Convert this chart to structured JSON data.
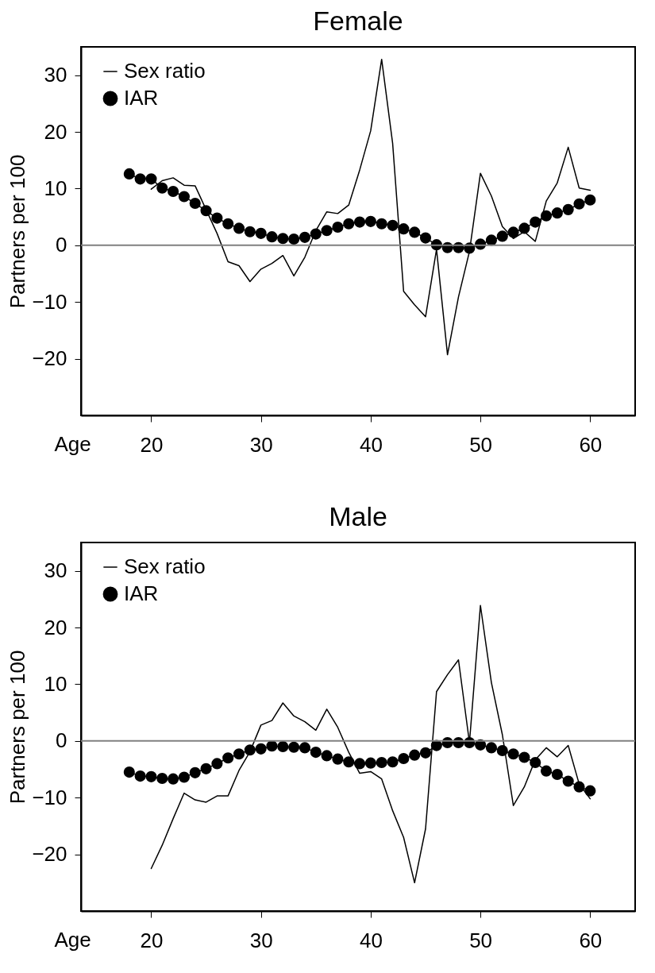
{
  "chart_data": [
    {
      "type": "line",
      "title": "Female",
      "xlabel": "Age",
      "ylabel": "Partners per 100",
      "xlim": [
        13.6,
        64.1
      ],
      "xticks": [
        20,
        30,
        40,
        50,
        60
      ],
      "ylim": [
        -30,
        35
      ],
      "yticks": [
        -20,
        -10,
        0,
        10,
        20,
        30
      ],
      "grid": false,
      "legend": "top left",
      "ref_lines": [
        {
          "axis": "y",
          "value": 0,
          "color": "#808080"
        }
      ],
      "series": [
        {
          "name": "Sex ratio",
          "color": "#000000",
          "marker": "none",
          "x": [
            20,
            21,
            22,
            23,
            24,
            25,
            26,
            27,
            28,
            29,
            30,
            31,
            32,
            33,
            34,
            35,
            36,
            37,
            38,
            39,
            40,
            41,
            42,
            43,
            44,
            45,
            46,
            47,
            48,
            49,
            50,
            51,
            52,
            53,
            54,
            55,
            56,
            57,
            58,
            59,
            60
          ],
          "values": [
            9.9,
            11.4,
            11.9,
            10.6,
            10.5,
            6.3,
            2.1,
            -2.9,
            -3.6,
            -6.4,
            -4.2,
            -3.2,
            -1.8,
            -5.4,
            -2.1,
            2.6,
            5.9,
            5.6,
            7.1,
            13.3,
            20.2,
            32.8,
            18.0,
            -8.1,
            -10.5,
            -12.6,
            -0.7,
            -19.3,
            -9.1,
            -1.1,
            12.7,
            8.7,
            3.3,
            1.2,
            2.4,
            0.7,
            7.8,
            11.0,
            17.3,
            10.1,
            9.7
          ]
        },
        {
          "name": "IAR",
          "color": "#000000",
          "marker": "circle",
          "x": [
            18,
            19,
            20,
            21,
            22,
            23,
            24,
            25,
            26,
            27,
            28,
            29,
            30,
            31,
            32,
            33,
            34,
            35,
            36,
            37,
            38,
            39,
            40,
            41,
            42,
            43,
            44,
            45,
            46,
            47,
            48,
            49,
            50,
            51,
            52,
            53,
            54,
            55,
            56,
            57,
            58,
            59,
            60
          ],
          "values": [
            12.6,
            11.7,
            11.7,
            10.1,
            9.5,
            8.6,
            7.4,
            6.1,
            4.8,
            3.8,
            3.0,
            2.4,
            2.1,
            1.5,
            1.2,
            1.1,
            1.4,
            2.0,
            2.6,
            3.2,
            3.8,
            4.1,
            4.2,
            3.8,
            3.5,
            2.9,
            2.3,
            1.3,
            0.1,
            -0.4,
            -0.4,
            -0.5,
            0.2,
            0.9,
            1.6,
            2.3,
            3.0,
            4.1,
            5.2,
            5.7,
            6.3,
            7.3,
            8.0
          ]
        }
      ]
    },
    {
      "type": "line",
      "title": "Male",
      "xlabel": "Age",
      "ylabel": "Partners per 100",
      "xlim": [
        13.6,
        64.1
      ],
      "xticks": [
        20,
        30,
        40,
        50,
        60
      ],
      "ylim": [
        -30,
        35
      ],
      "yticks": [
        -20,
        -10,
        0,
        10,
        20,
        30
      ],
      "grid": false,
      "legend": "top left",
      "ref_lines": [
        {
          "axis": "y",
          "value": 0,
          "color": "#808080"
        }
      ],
      "series": [
        {
          "name": "Sex ratio",
          "color": "#000000",
          "marker": "none",
          "x": [
            20,
            21,
            22,
            23,
            24,
            25,
            26,
            27,
            28,
            29,
            30,
            31,
            32,
            33,
            34,
            35,
            36,
            37,
            38,
            39,
            40,
            41,
            42,
            43,
            44,
            45,
            46,
            47,
            48,
            49,
            50,
            51,
            52,
            53,
            54,
            55,
            56,
            57,
            58,
            59,
            60
          ],
          "values": [
            -22.5,
            -18.4,
            -13.7,
            -9.2,
            -10.4,
            -10.8,
            -9.7,
            -9.7,
            -5.2,
            -1.9,
            2.8,
            3.6,
            6.7,
            4.4,
            3.4,
            1.9,
            5.6,
            2.4,
            -2.0,
            -5.7,
            -5.4,
            -6.7,
            -12.3,
            -17.0,
            -25.0,
            -15.5,
            8.7,
            11.7,
            14.3,
            -0.3,
            23.9,
            10.3,
            1.1,
            -11.4,
            -8.1,
            -3.3,
            -1.2,
            -2.8,
            -0.8,
            -7.6,
            -10.2
          ]
        },
        {
          "name": "IAR",
          "color": "#000000",
          "marker": "circle",
          "x": [
            18,
            19,
            20,
            21,
            22,
            23,
            24,
            25,
            26,
            27,
            28,
            29,
            30,
            31,
            32,
            33,
            34,
            35,
            36,
            37,
            38,
            39,
            40,
            41,
            42,
            43,
            44,
            45,
            46,
            47,
            48,
            49,
            50,
            51,
            52,
            53,
            54,
            55,
            56,
            57,
            58,
            59,
            60
          ],
          "values": [
            -5.5,
            -6.2,
            -6.3,
            -6.6,
            -6.7,
            -6.4,
            -5.6,
            -4.9,
            -4.0,
            -3.0,
            -2.3,
            -1.6,
            -1.4,
            -0.9,
            -1.0,
            -1.1,
            -1.2,
            -2.0,
            -2.6,
            -3.2,
            -3.7,
            -4.0,
            -3.9,
            -3.8,
            -3.7,
            -3.1,
            -2.5,
            -2.1,
            -0.8,
            -0.3,
            -0.3,
            -0.3,
            -0.7,
            -1.2,
            -1.7,
            -2.3,
            -2.9,
            -3.8,
            -5.3,
            -5.9,
            -7.1,
            -8.1,
            -8.8
          ]
        }
      ]
    }
  ]
}
